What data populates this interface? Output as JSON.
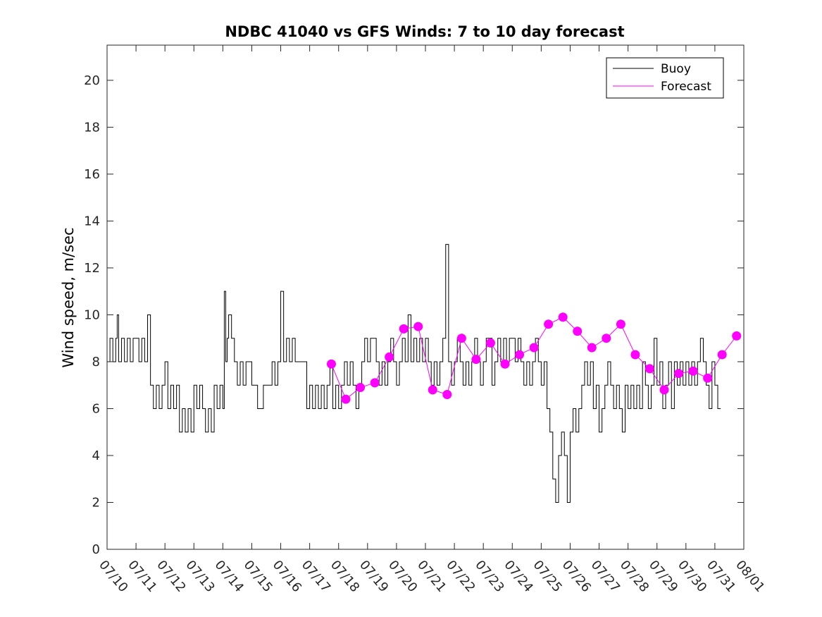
{
  "chart_data": {
    "type": "line",
    "title": "NDBC 41040 vs GFS Winds: 7 to 10 day forecast",
    "ylabel": "Wind speed, m/sec",
    "xlabel": "",
    "xlim": [
      "07/10",
      "08/01"
    ],
    "ylim": [
      0,
      21.5
    ],
    "yticks": [
      0,
      2,
      4,
      6,
      8,
      10,
      12,
      14,
      16,
      18,
      20
    ],
    "xticks": [
      "07/10",
      "07/11",
      "07/12",
      "07/13",
      "07/14",
      "07/15",
      "07/16",
      "07/17",
      "07/18",
      "07/19",
      "07/20",
      "07/21",
      "07/22",
      "07/23",
      "07/24",
      "07/25",
      "07/26",
      "07/27",
      "07/28",
      "07/29",
      "07/30",
      "07/31",
      "08/01"
    ],
    "legend": {
      "location": "top-right",
      "entries": [
        "Buoy",
        "Forecast"
      ]
    },
    "colors": {
      "buoy": "#000000",
      "forecast": "#ff00ff"
    },
    "series": [
      {
        "name": "Buoy",
        "x_days_from_0710": [
          0.0,
          0.1,
          0.2,
          0.3,
          0.35,
          0.4,
          0.5,
          0.6,
          0.7,
          0.8,
          0.9,
          1.0,
          1.1,
          1.2,
          1.3,
          1.4,
          1.5,
          1.6,
          1.7,
          1.8,
          1.9,
          2.0,
          2.1,
          2.2,
          2.3,
          2.4,
          2.5,
          2.6,
          2.7,
          2.8,
          2.9,
          3.0,
          3.1,
          3.2,
          3.3,
          3.4,
          3.5,
          3.6,
          3.7,
          3.8,
          3.9,
          4.0,
          4.05,
          4.1,
          4.15,
          4.2,
          4.3,
          4.4,
          4.5,
          4.6,
          4.7,
          4.8,
          4.9,
          5.0,
          5.1,
          5.2,
          5.3,
          5.4,
          5.5,
          5.6,
          5.7,
          5.8,
          5.9,
          6.0,
          6.1,
          6.2,
          6.3,
          6.4,
          6.5,
          6.6,
          6.7,
          6.8,
          6.9,
          7.0,
          7.1,
          7.2,
          7.3,
          7.4,
          7.5,
          7.6,
          7.7,
          7.8,
          7.9,
          8.0,
          8.1,
          8.2,
          8.3,
          8.4,
          8.5,
          8.6,
          8.7,
          8.8,
          8.9,
          9.0,
          9.1,
          9.2,
          9.3,
          9.4,
          9.5,
          9.6,
          9.7,
          9.8,
          9.9,
          10.0,
          10.1,
          10.2,
          10.3,
          10.4,
          10.5,
          10.6,
          10.7,
          10.8,
          10.9,
          11.0,
          11.1,
          11.2,
          11.3,
          11.4,
          11.5,
          11.6,
          11.7,
          11.8,
          11.9,
          12.0,
          12.1,
          12.2,
          12.3,
          12.4,
          12.5,
          12.6,
          12.7,
          12.8,
          12.9,
          13.0,
          13.1,
          13.2,
          13.3,
          13.4,
          13.5,
          13.6,
          13.7,
          13.8,
          13.9,
          14.0,
          14.1,
          14.2,
          14.3,
          14.4,
          14.5,
          14.6,
          14.7,
          14.8,
          14.9,
          15.0,
          15.1,
          15.2,
          15.3,
          15.4,
          15.5,
          15.6,
          15.7,
          15.8,
          15.9,
          16.0,
          16.1,
          16.2,
          16.3,
          16.4,
          16.5,
          16.6,
          16.7,
          16.8,
          16.9,
          17.0,
          17.1,
          17.2,
          17.3,
          17.4,
          17.5,
          17.6,
          17.7,
          17.8,
          17.9,
          18.0,
          18.1,
          18.2,
          18.3,
          18.4,
          18.5,
          18.6,
          18.7,
          18.8,
          18.9,
          19.0,
          19.1,
          19.2,
          19.3,
          19.4,
          19.5,
          19.6,
          19.7,
          19.8,
          19.9,
          20.0,
          20.1,
          20.2,
          20.3,
          20.4,
          20.5,
          20.6,
          20.7,
          20.8,
          20.9,
          21.0,
          21.1,
          21.2
        ],
        "y": [
          8,
          9,
          8,
          9,
          10,
          8,
          9,
          8,
          9,
          8,
          9,
          9,
          8,
          9,
          8,
          10,
          7,
          6,
          7,
          6,
          7,
          8,
          6,
          7,
          6,
          7,
          5,
          6,
          5,
          6,
          5,
          7,
          6,
          7,
          6,
          5,
          6,
          5,
          7,
          6,
          7,
          6,
          11,
          8,
          9,
          10,
          9,
          8,
          7,
          8,
          7,
          8,
          8,
          7,
          7,
          6,
          6,
          7,
          7,
          7,
          8,
          7,
          8,
          11,
          8,
          9,
          8,
          9,
          8,
          8,
          8,
          8,
          6,
          7,
          6,
          7,
          6,
          7,
          6,
          7,
          8,
          6,
          7,
          6,
          7,
          8,
          7,
          8,
          7,
          6,
          7,
          8,
          9,
          8,
          9,
          9,
          8,
          7,
          8,
          7,
          8,
          9,
          8,
          7,
          8,
          9,
          8,
          10,
          8,
          9,
          8,
          9,
          8,
          9,
          8,
          7,
          8,
          7,
          8,
          9,
          13,
          8,
          7,
          8,
          9,
          8,
          7,
          8,
          7,
          8,
          9,
          8,
          7,
          8,
          9,
          9,
          7,
          8,
          9,
          8,
          9,
          8,
          9,
          9,
          8,
          9,
          8,
          7,
          8,
          7,
          8,
          9,
          8,
          7,
          8,
          6,
          5,
          3,
          2,
          4,
          5,
          4,
          2,
          5,
          6,
          5,
          6,
          7,
          8,
          7,
          8,
          6,
          7,
          5,
          6,
          7,
          8,
          7,
          6,
          7,
          6,
          5,
          7,
          6,
          7,
          6,
          7,
          6,
          8,
          7,
          6,
          7,
          9,
          7,
          8,
          6,
          7,
          8,
          6,
          8,
          7,
          8,
          7,
          8,
          7,
          8,
          7,
          8,
          9,
          8,
          7,
          6,
          8,
          7,
          6
        ]
      },
      {
        "name": "Forecast",
        "marker_x_days_from_0710": [
          7.75,
          8.25,
          8.75,
          9.25,
          9.75,
          10.25,
          10.75,
          11.25,
          11.75,
          12.25,
          12.75,
          13.25,
          13.75,
          14.25,
          14.75,
          15.25,
          15.75,
          16.25,
          16.75,
          17.25,
          17.75,
          18.25,
          18.75,
          19.25,
          19.75,
          20.25,
          20.75,
          21.25,
          21.75
        ],
        "marker_y": [
          7.9,
          6.4,
          6.9,
          7.1,
          8.2,
          9.4,
          9.5,
          6.8,
          6.6,
          9.0,
          8.1,
          8.8,
          7.9,
          8.3,
          8.6,
          9.6,
          9.9,
          9.3,
          8.6,
          9.0,
          9.6,
          8.3,
          7.7,
          6.8,
          7.5,
          7.6,
          7.3,
          8.3,
          9.1
        ]
      }
    ]
  }
}
